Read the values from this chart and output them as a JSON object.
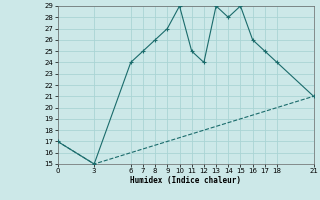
{
  "title": "",
  "xlabel": "Humidex (Indice chaleur)",
  "bg_color": "#cce8e8",
  "grid_color": "#aad4d4",
  "line_color": "#1a6b6b",
  "curve_x": [
    0,
    3,
    6,
    7,
    8,
    9,
    10,
    11,
    12,
    13,
    14,
    15,
    16,
    17,
    18,
    21
  ],
  "curve_y": [
    17,
    15,
    24,
    25,
    26,
    27,
    29,
    25,
    24,
    29,
    28,
    29,
    26,
    25,
    24,
    21
  ],
  "line_x": [
    0,
    3,
    21
  ],
  "line_y": [
    17,
    15,
    21
  ],
  "xticks": [
    0,
    3,
    6,
    7,
    8,
    9,
    10,
    11,
    12,
    13,
    14,
    15,
    16,
    17,
    18,
    21
  ],
  "yticks": [
    15,
    16,
    17,
    18,
    19,
    20,
    21,
    22,
    23,
    24,
    25,
    26,
    27,
    28,
    29
  ],
  "xlim": [
    0,
    21
  ],
  "ylim": [
    15,
    29
  ]
}
